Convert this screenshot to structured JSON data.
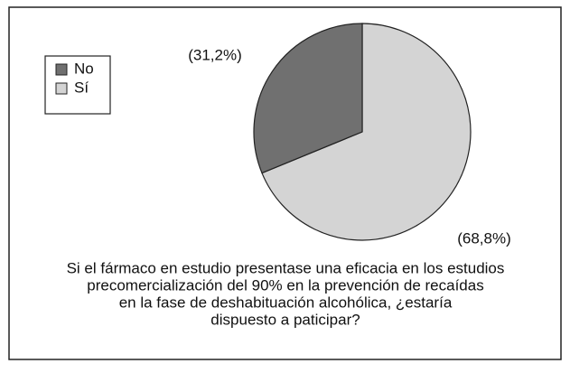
{
  "chart_data": {
    "type": "pie",
    "categories": [
      "No",
      "Sí"
    ],
    "values": [
      31.2,
      68.8
    ],
    "value_labels": [
      "(31,2%)",
      "(68,8%)"
    ],
    "colors": [
      "#707070",
      "#d4d4d4"
    ],
    "legend": "upper left",
    "caption": [
      "Si el fármaco en estudio presentase una eficacia en los estudios",
      "precomercialización del 90% en la prevención de recaídas",
      "en la fase de deshabituación alcohólica, ¿estaría",
      "dispuesto a paticipar?"
    ]
  }
}
